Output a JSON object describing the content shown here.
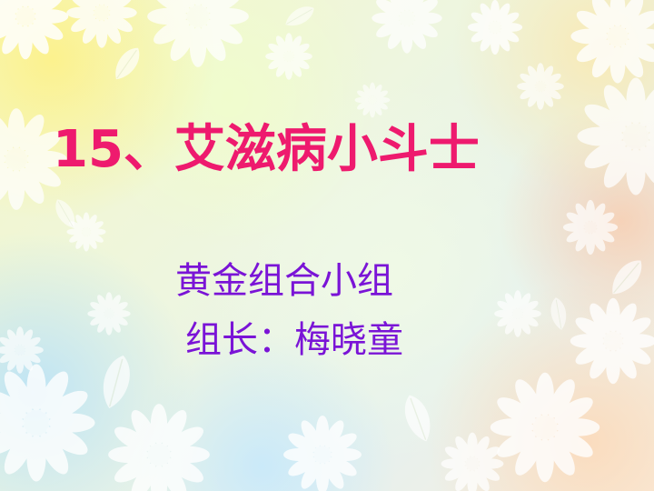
{
  "slide": {
    "title": "15、艾滋病小斗士",
    "line1": "黄金组合小组",
    "line2": "组长：梅晓童"
  },
  "colors": {
    "title": "#ee1a6e",
    "body_text": "#7a14d6",
    "background": "#eef6df"
  },
  "icons": [
    "flower-icon",
    "leaf-icon"
  ]
}
